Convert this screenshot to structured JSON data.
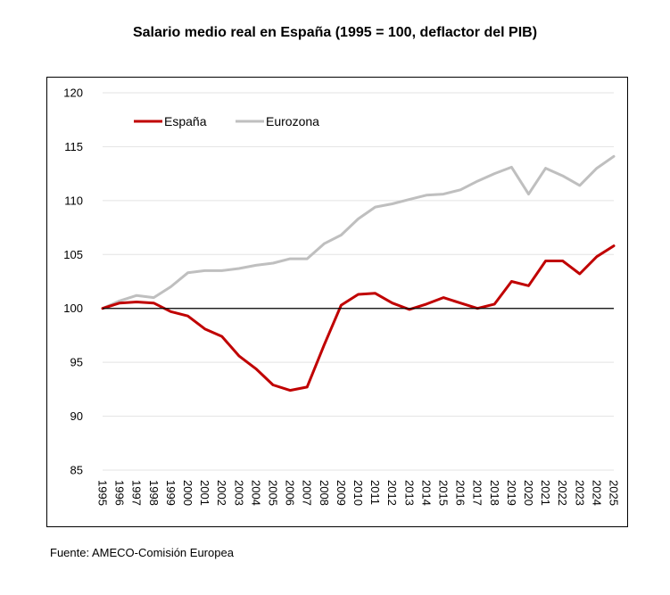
{
  "title": "Salario medio real en España (1995 = 100, deflactor del PIB)",
  "source": "Fuente: AMECO-Comisión Europea",
  "chart_data": {
    "type": "line",
    "title": "Salario medio real en España (1995 = 100, deflactor del PIB)",
    "xlabel": "",
    "ylabel": "",
    "ylim": [
      85,
      120
    ],
    "yticks": [
      85,
      90,
      95,
      100,
      105,
      110,
      115,
      120
    ],
    "grid": true,
    "reference_line": 100,
    "legend_placement": "top-left",
    "x": [
      "1995",
      "1996",
      "1997",
      "1998",
      "1999",
      "2000",
      "2001",
      "2002",
      "2003",
      "2004",
      "2005",
      "2006",
      "2007",
      "2008",
      "2009",
      "2010",
      "2011",
      "2012",
      "2013",
      "2014",
      "2015",
      "2016",
      "2017",
      "2018",
      "2019",
      "2020",
      "2021",
      "2022",
      "2023",
      "2024",
      "2025"
    ],
    "series": [
      {
        "name": "España",
        "color": "#c00000",
        "values": [
          100.0,
          100.5,
          100.6,
          100.5,
          99.7,
          99.3,
          98.1,
          97.4,
          95.6,
          94.4,
          92.9,
          92.4,
          92.7,
          96.6,
          100.3,
          101.3,
          101.4,
          100.5,
          99.9,
          100.4,
          101.0,
          100.5,
          100.0,
          100.4,
          102.5,
          102.1,
          104.4,
          104.4,
          103.2,
          104.8,
          105.8
        ]
      },
      {
        "name": "Eurozona",
        "color": "#bfbfbf",
        "values": [
          100.0,
          100.7,
          101.2,
          101.0,
          102.0,
          103.3,
          103.5,
          103.5,
          103.7,
          104.0,
          104.2,
          104.6,
          104.6,
          106.0,
          106.8,
          108.3,
          109.4,
          109.7,
          110.1,
          110.5,
          110.6,
          111.0,
          111.8,
          112.5,
          113.1,
          110.6,
          113.0,
          112.3,
          111.4,
          113.0,
          114.1
        ]
      }
    ]
  }
}
